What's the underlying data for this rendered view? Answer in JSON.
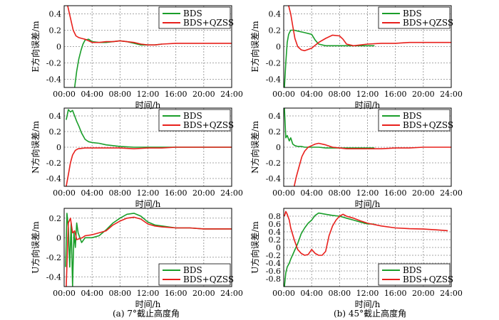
{
  "captions": {
    "left": "(a) 7°截止高度角",
    "right": "(b) 45°截止高度角"
  },
  "colors": {
    "bds": "#1a9e2a",
    "bds_qzss": "#e8201c",
    "grid": "#8a8a8a",
    "frame": "#000000"
  },
  "chart_data": [
    {
      "type": "line",
      "id": "a-E",
      "xlabel": "时间/h",
      "ylabel": "E方向误差/m",
      "x_ticks": [
        "00:00",
        "04:00",
        "08:00",
        "12:00",
        "16:00",
        "20:00",
        "24:00"
      ],
      "xlim": [
        0,
        24
      ],
      "ylim": [
        -0.5,
        0.5
      ],
      "y_ticks": [
        "-0.4",
        "-0.2",
        "0",
        "0.2",
        "0.4"
      ],
      "y_tick_values": [
        -0.4,
        -0.2,
        0,
        0.2,
        0.4
      ],
      "legend": [
        "BDS",
        "BDS+QZSS"
      ],
      "legend_position": "top-right",
      "series": [
        {
          "name": "BDS",
          "x": [
            1.5,
            1.8,
            2.1,
            2.4,
            2.7,
            3.0,
            3.5,
            4.0,
            5.0,
            6.0,
            7.0,
            8.0,
            9.0,
            10.0,
            11.0,
            12.0,
            13.0,
            14.0
          ],
          "y": [
            -0.5,
            -0.3,
            -0.15,
            -0.05,
            0.03,
            0.08,
            0.09,
            0.06,
            0.05,
            0.05,
            0.06,
            0.07,
            0.06,
            0.04,
            0.02,
            0.02,
            0.02,
            0.03
          ]
        },
        {
          "name": "BDS+QZSS",
          "x": [
            0.5,
            0.9,
            1.3,
            1.7,
            2.1,
            2.5,
            3.0,
            3.5,
            4.0,
            5.0,
            6.0,
            7.0,
            8.0,
            9.0,
            10.0,
            11.0,
            12.0,
            13.0,
            14.0,
            16.0,
            18.0,
            20.0,
            22.0,
            24.0
          ],
          "y": [
            0.5,
            0.35,
            0.2,
            0.13,
            0.11,
            0.1,
            0.09,
            0.07,
            0.05,
            0.05,
            0.06,
            0.06,
            0.07,
            0.06,
            0.05,
            0.03,
            0.02,
            0.02,
            0.03,
            0.04,
            0.04,
            0.04,
            0.04,
            0.04
          ]
        }
      ]
    },
    {
      "type": "line",
      "id": "b-E",
      "xlabel": "时间/h",
      "ylabel": "E方向误差/m",
      "x_ticks": [
        "00:00",
        "04:00",
        "08:00",
        "12:00",
        "16:00",
        "20:00",
        "24:00"
      ],
      "xlim": [
        0,
        24
      ],
      "ylim": [
        -0.5,
        0.5
      ],
      "y_ticks": [
        "-0.4",
        "-0.2",
        "0",
        "0.2",
        "0.4"
      ],
      "y_tick_values": [
        -0.4,
        -0.2,
        0,
        0.2,
        0.4
      ],
      "legend": [
        "BDS",
        "BDS+QZSS"
      ],
      "legend_position": "top-right",
      "series": [
        {
          "name": "BDS",
          "x": [
            0.1,
            0.3,
            0.5,
            0.7,
            1.0,
            1.5,
            2.0,
            3.0,
            4.0,
            4.5,
            5.0,
            6.0,
            7.0,
            8.0,
            9.0,
            10.0,
            11.0,
            12.0,
            13.0
          ],
          "y": [
            -0.5,
            -0.2,
            0.05,
            0.15,
            0.2,
            0.2,
            0.19,
            0.17,
            0.15,
            0.08,
            0.03,
            0.01,
            0.01,
            0.01,
            0.01,
            0.01,
            0.01,
            0.01,
            0.01
          ]
        },
        {
          "name": "BDS+QZSS",
          "x": [
            0.7,
            1.0,
            1.3,
            1.6,
            2.0,
            2.5,
            3.0,
            4.0,
            5.0,
            6.0,
            7.0,
            8.0,
            8.5,
            9.0,
            10.0,
            12.0,
            14.0,
            16.0,
            18.0,
            20.0,
            22.0,
            24.0
          ],
          "y": [
            0.5,
            0.4,
            0.25,
            0.1,
            0.0,
            -0.04,
            -0.05,
            -0.02,
            0.05,
            0.1,
            0.14,
            0.13,
            0.09,
            0.03,
            0.01,
            0.03,
            0.04,
            0.04,
            0.05,
            0.05,
            0.05,
            0.05
          ]
        }
      ]
    },
    {
      "type": "line",
      "id": "a-N",
      "xlabel": "时间/h",
      "ylabel": "N方向误差/m",
      "x_ticks": [
        "00:00",
        "04:00",
        "08:00",
        "12:00",
        "16:00",
        "20:00",
        "24:00"
      ],
      "xlim": [
        0,
        24
      ],
      "ylim": [
        -0.5,
        0.5
      ],
      "y_ticks": [
        "-0.4",
        "-0.2",
        "0",
        "0.2",
        "0.4"
      ],
      "y_tick_values": [
        -0.4,
        -0.2,
        0,
        0.2,
        0.4
      ],
      "legend": [
        "BDS",
        "BDS+QZSS"
      ],
      "legend_position": "top-right",
      "series": [
        {
          "name": "BDS",
          "x": [
            0.3,
            0.6,
            0.9,
            1.2,
            1.5,
            1.8,
            2.1,
            2.5,
            3.0,
            3.5,
            4.0,
            5.0,
            6.0,
            7.0,
            8.0,
            10.0,
            12.0,
            14.0,
            16.0,
            18.0,
            20.0,
            22.0,
            24.0
          ],
          "y": [
            0.35,
            0.48,
            0.45,
            0.47,
            0.4,
            0.33,
            0.27,
            0.18,
            0.1,
            0.07,
            0.06,
            0.05,
            0.03,
            0.02,
            0.01,
            0.0,
            0.0,
            0.0,
            0.0,
            0.0,
            0.0,
            0.0,
            0.0
          ]
        },
        {
          "name": "BDS+QZSS",
          "x": [
            0.3,
            0.6,
            0.9,
            1.2,
            1.6,
            2.0,
            3.0,
            4.0,
            6.0,
            8.0,
            10.0,
            12.0,
            14.0,
            16.0,
            18.0,
            20.0,
            22.0,
            24.0
          ],
          "y": [
            -0.5,
            -0.35,
            -0.2,
            -0.1,
            -0.04,
            -0.02,
            -0.01,
            -0.01,
            -0.01,
            -0.01,
            -0.02,
            -0.01,
            -0.01,
            0.0,
            0.0,
            0.0,
            0.0,
            0.0
          ]
        }
      ]
    },
    {
      "type": "line",
      "id": "b-N",
      "xlabel": "时间/h",
      "ylabel": "N方向误差/m",
      "x_ticks": [
        "00:00",
        "04:00",
        "08:00",
        "12:00",
        "16:00",
        "20:00",
        "24:00"
      ],
      "xlim": [
        0,
        24
      ],
      "ylim": [
        -0.5,
        0.5
      ],
      "y_ticks": [
        "-0.4",
        "-0.2",
        "0",
        "0.2",
        "0.4"
      ],
      "y_tick_values": [
        -0.4,
        -0.2,
        0,
        0.2,
        0.4
      ],
      "legend": [
        "BDS",
        "BDS+QZSS"
      ],
      "legend_position": "top-right",
      "series": [
        {
          "name": "BDS",
          "x": [
            0.1,
            0.3,
            0.5,
            0.8,
            1.0,
            1.3,
            1.6,
            2.0,
            2.5,
            3.0,
            4.0,
            5.0,
            6.0,
            7.0,
            8.0,
            10.0,
            12.0,
            13.0
          ],
          "y": [
            0.5,
            0.12,
            0.15,
            0.08,
            0.12,
            0.04,
            0.02,
            0.01,
            0.01,
            0.0,
            0.0,
            0.0,
            -0.01,
            -0.01,
            -0.01,
            -0.01,
            -0.01,
            -0.01
          ]
        },
        {
          "name": "BDS+QZSS",
          "x": [
            1.5,
            1.8,
            2.2,
            2.6,
            3.0,
            3.5,
            4.0,
            4.5,
            5.0,
            6.0,
            7.0,
            8.0,
            9.0,
            10.0,
            12.0,
            14.0,
            16.0,
            18.0,
            20.0,
            22.0,
            24.0
          ],
          "y": [
            -0.5,
            -0.38,
            -0.25,
            -0.12,
            -0.05,
            0.0,
            0.02,
            0.04,
            0.05,
            0.03,
            0.0,
            -0.01,
            -0.02,
            -0.02,
            -0.02,
            -0.02,
            -0.01,
            -0.01,
            0.0,
            0.0,
            0.0
          ]
        }
      ]
    },
    {
      "type": "line",
      "id": "a-U",
      "xlabel": "时间/h",
      "ylabel": "U方向误差/m",
      "x_ticks": [
        "00:00",
        "04:00",
        "08:00",
        "12:00",
        "16:00",
        "20:00",
        "24:00"
      ],
      "xlim": [
        0,
        24
      ],
      "ylim": [
        -0.5,
        0.3
      ],
      "y_ticks": [
        "-0.4",
        "-0.2",
        "0",
        "0.2"
      ],
      "y_tick_values": [
        -0.4,
        -0.2,
        0,
        0.2
      ],
      "legend": [
        "BDS",
        "BDS+QZSS"
      ],
      "legend_position": "bottom-right",
      "series": [
        {
          "name": "BDS",
          "x": [
            0.2,
            0.4,
            0.6,
            0.8,
            1.0,
            1.2,
            1.4,
            1.6,
            1.8,
            2.0,
            2.5,
            3.0,
            4.0,
            5.0,
            6.0,
            7.0,
            8.0,
            9.0,
            10.0,
            11.0,
            12.0,
            13.0,
            14.0,
            16.0,
            18.0,
            20.0,
            22.0,
            24.0
          ],
          "y": [
            -0.3,
            0.25,
            0.1,
            -0.3,
            0.15,
            -0.5,
            0.05,
            -0.1,
            0.15,
            0.05,
            -0.05,
            0.0,
            0.0,
            0.02,
            0.08,
            0.15,
            0.2,
            0.24,
            0.25,
            0.22,
            0.16,
            0.13,
            0.12,
            0.1,
            0.1,
            0.09,
            0.09,
            0.09
          ]
        },
        {
          "name": "BDS+QZSS",
          "x": [
            0.3,
            0.6,
            0.9,
            1.2,
            1.5,
            1.8,
            2.2,
            2.6,
            3.0,
            4.0,
            5.0,
            6.0,
            7.0,
            8.0,
            9.0,
            10.0,
            11.0,
            12.0,
            13.0,
            14.0,
            16.0,
            18.0,
            20.0,
            22.0,
            24.0
          ],
          "y": [
            -0.5,
            0.15,
            0.2,
            0.05,
            0.07,
            -0.02,
            -0.01,
            0.0,
            0.02,
            0.03,
            0.05,
            0.07,
            0.13,
            0.17,
            0.2,
            0.21,
            0.19,
            0.14,
            0.12,
            0.11,
            0.1,
            0.1,
            0.09,
            0.09,
            0.09
          ]
        }
      ]
    },
    {
      "type": "line",
      "id": "b-U",
      "xlabel": "时间/h",
      "ylabel": "U方向误差/m",
      "x_ticks": [
        "00:00",
        "04:00",
        "08:00",
        "12:00",
        "16:00",
        "20:00",
        "24:00"
      ],
      "xlim": [
        0,
        24
      ],
      "ylim": [
        -1.0,
        1.0
      ],
      "y_ticks": [
        "-0.8",
        "-0.6",
        "-0.4",
        "-0.2",
        "0",
        "0.2",
        "0.4",
        "0.6",
        "0.8"
      ],
      "y_tick_values": [
        -0.8,
        -0.6,
        -0.4,
        -0.2,
        0,
        0.2,
        0.4,
        0.6,
        0.8
      ],
      "legend": [
        "BDS",
        "BDS+QZSS"
      ],
      "legend_position": "bottom-right",
      "series": [
        {
          "name": "BDS",
          "x": [
            0.1,
            0.3,
            0.5,
            0.8,
            1.0,
            1.5,
            2.0,
            2.5,
            3.0,
            3.5,
            4.0,
            4.5,
            5.0,
            6.0,
            7.0,
            8.0,
            9.0,
            10.0,
            11.0,
            12.0,
            13.0
          ],
          "y": [
            -1.0,
            -0.65,
            -0.5,
            -0.4,
            -0.3,
            -0.1,
            0.1,
            0.35,
            0.5,
            0.62,
            0.7,
            0.82,
            0.88,
            0.85,
            0.82,
            0.8,
            0.75,
            0.7,
            0.65,
            0.6,
            0.6
          ]
        },
        {
          "name": "BDS+QZSS",
          "x": [
            0.1,
            0.3,
            0.5,
            0.8,
            1.0,
            1.5,
            2.0,
            2.5,
            3.0,
            3.5,
            4.0,
            4.5,
            5.0,
            5.5,
            6.0,
            6.5,
            7.0,
            7.5,
            8.0,
            8.5,
            9.0,
            10.0,
            11.0,
            12.0,
            14.0,
            16.0,
            18.0,
            20.0,
            22.0,
            23.5
          ],
          "y": [
            0.8,
            0.92,
            0.85,
            0.7,
            0.5,
            0.2,
            -0.05,
            -0.15,
            -0.2,
            -0.18,
            -0.05,
            -0.15,
            -0.2,
            -0.2,
            -0.1,
            0.3,
            0.55,
            0.7,
            0.8,
            0.85,
            0.8,
            0.75,
            0.68,
            0.62,
            0.55,
            0.5,
            0.48,
            0.47,
            0.45,
            0.43
          ]
        }
      ]
    }
  ]
}
